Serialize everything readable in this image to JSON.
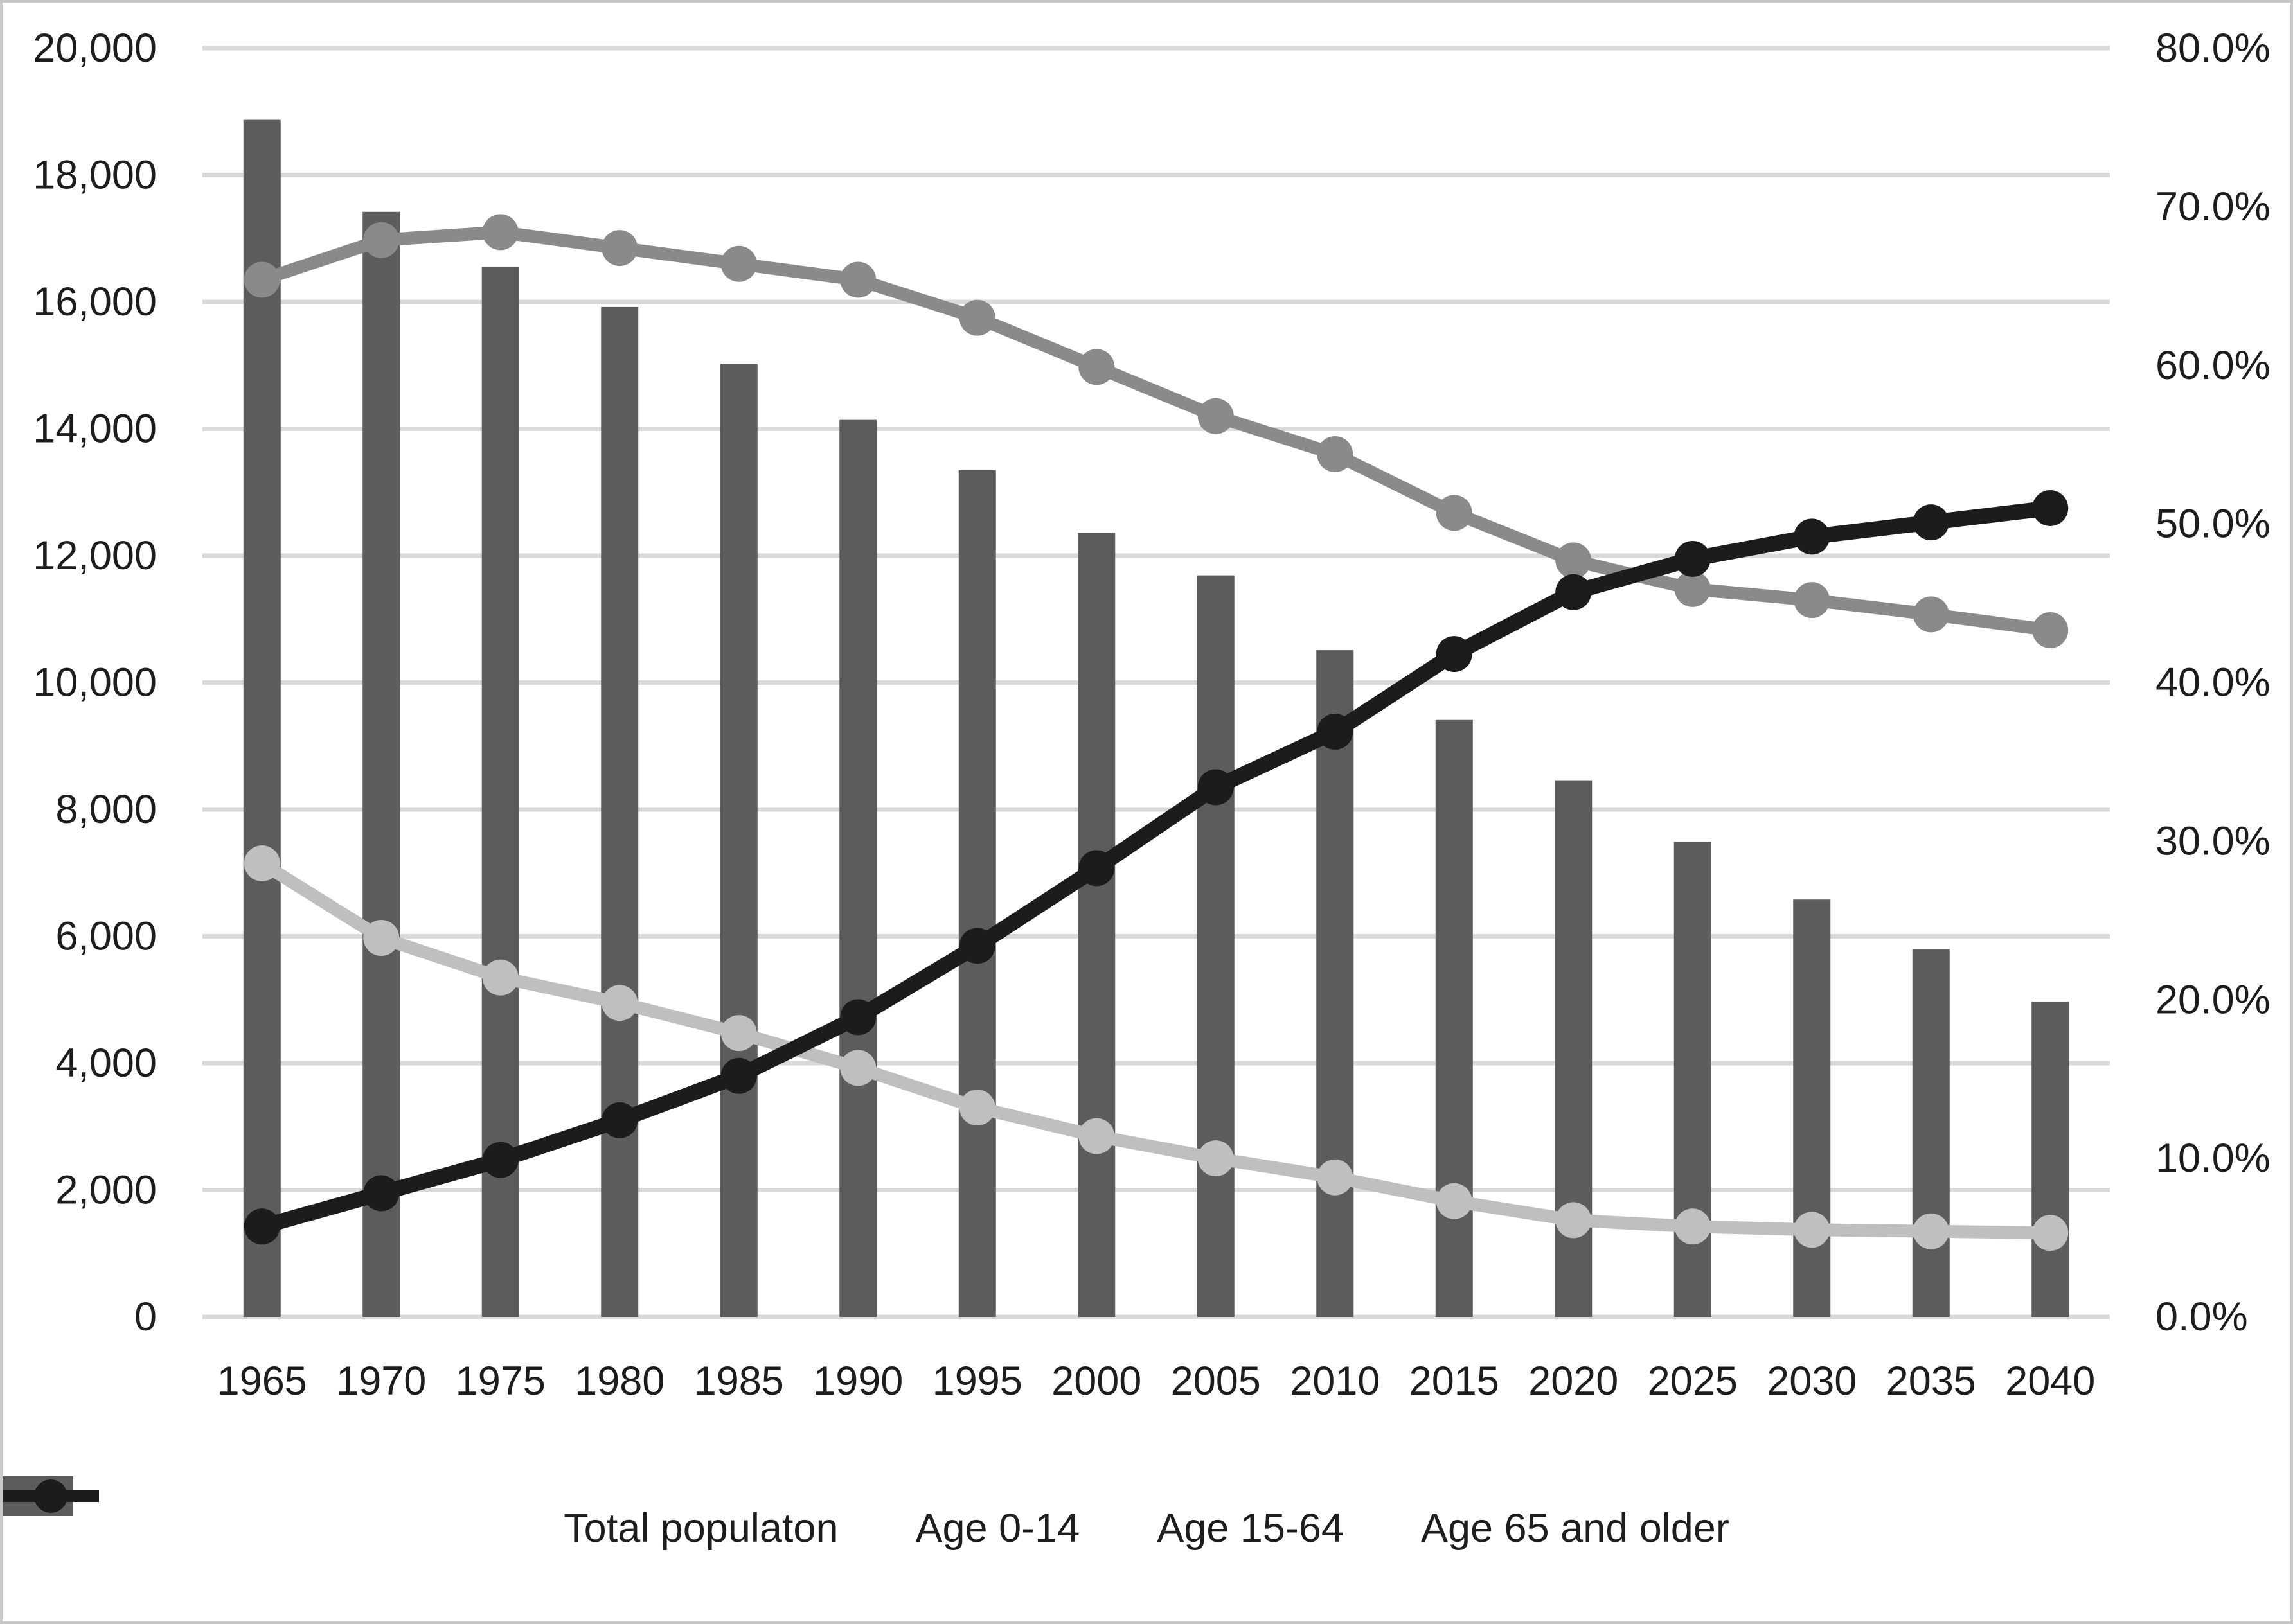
{
  "chart_data": {
    "type": "combo-bar-line",
    "title": "",
    "xlabel": "",
    "ylabel_left": "",
    "ylabel_right": "",
    "grid": true,
    "legend_position": "bottom",
    "categories": [
      "1965",
      "1970",
      "1975",
      "1980",
      "1985",
      "1990",
      "1995",
      "2000",
      "2005",
      "2010",
      "2015",
      "2020",
      "2025",
      "2030",
      "2035",
      "2040"
    ],
    "series": [
      {
        "name": "Total populaton",
        "type": "bar",
        "axis": "left",
        "color": "#5c5c5c",
        "values": [
          18870,
          17420,
          16550,
          15920,
          15020,
          14140,
          13350,
          12360,
          11690,
          10510,
          9410,
          8460,
          7490,
          6580,
          5800,
          4970
        ]
      },
      {
        "name": "Age 0-14",
        "type": "line",
        "axis": "right",
        "color": "#bfbfbf",
        "values": [
          28.6,
          23.9,
          21.4,
          19.8,
          17.9,
          15.7,
          13.2,
          11.4,
          10.0,
          8.8,
          7.3,
          6.1,
          5.7,
          5.5,
          5.4,
          5.3
        ]
      },
      {
        "name": "Age 15-64",
        "type": "line",
        "axis": "right",
        "color": "#8a8a8a",
        "values": [
          65.4,
          67.9,
          68.4,
          67.4,
          66.4,
          65.4,
          63.0,
          59.9,
          56.8,
          54.4,
          50.7,
          47.7,
          45.9,
          45.2,
          44.3,
          43.3
        ]
      },
      {
        "name": "Age 65 and older",
        "type": "line",
        "axis": "right",
        "color": "#1c1c1c",
        "values": [
          5.7,
          7.8,
          9.9,
          12.4,
          15.2,
          18.9,
          23.4,
          28.3,
          33.4,
          36.9,
          41.8,
          45.7,
          47.8,
          49.2,
          50.1,
          51.0
        ]
      }
    ],
    "left_axis": {
      "min": 0,
      "max": 20000,
      "step": 2000,
      "labels": [
        "20,000",
        "18,000",
        "16,000",
        "14,000",
        "12,000",
        "10,000",
        "8,000",
        "6,000",
        "4,000",
        "2,000",
        "0"
      ]
    },
    "right_axis": {
      "min": 0,
      "max": 80,
      "step": 10,
      "labels": [
        "80.0%",
        "70.0%",
        "60.0%",
        "50.0%",
        "40.0%",
        "30.0%",
        "20.0%",
        "10.0%",
        "0.0%"
      ]
    },
    "gridline_color": "#d9d9d9",
    "tick_label_color": "#1d1d1d"
  },
  "legend": {
    "items": [
      {
        "label": "Total populaton"
      },
      {
        "label": "Age 0-14"
      },
      {
        "label": "Age 15-64"
      },
      {
        "label": "Age 65 and older"
      }
    ]
  }
}
